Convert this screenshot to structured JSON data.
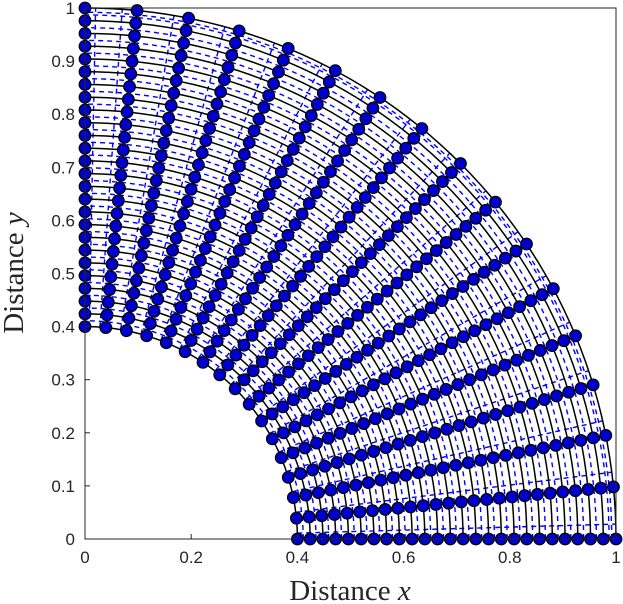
{
  "chart_data": {
    "type": "scatter",
    "title": "",
    "xlabel_text": "Distance",
    "xlabel_var": "x",
    "ylabel_text": "Distance",
    "ylabel_var": "y",
    "xlim": [
      0,
      1
    ],
    "ylim": [
      0,
      1
    ],
    "xticks": [
      "0",
      "0.2",
      "0.4",
      "0.6",
      "0.8",
      "1"
    ],
    "yticks": [
      "0",
      "0.1",
      "0.2",
      "0.3",
      "0.4",
      "0.5",
      "0.6",
      "0.7",
      "0.8",
      "0.9",
      "1"
    ],
    "grid": false,
    "legend": "none",
    "mesh": {
      "shape": "quarter annulus",
      "inner_radius": 0.4,
      "outer_radius": 1.0,
      "angle_range_deg": [
        0,
        90
      ],
      "radial_lines": 17,
      "arc_lines": 26,
      "solid_line_color": "#000000",
      "dashed_line_color": "#0000ff",
      "marker_fill": "#0000cc",
      "marker_edge": "#000000"
    },
    "series": [
      {
        "description": "mesh nodes (one per intersection of a radial line and an arc)",
        "count": 442
      }
    ]
  }
}
